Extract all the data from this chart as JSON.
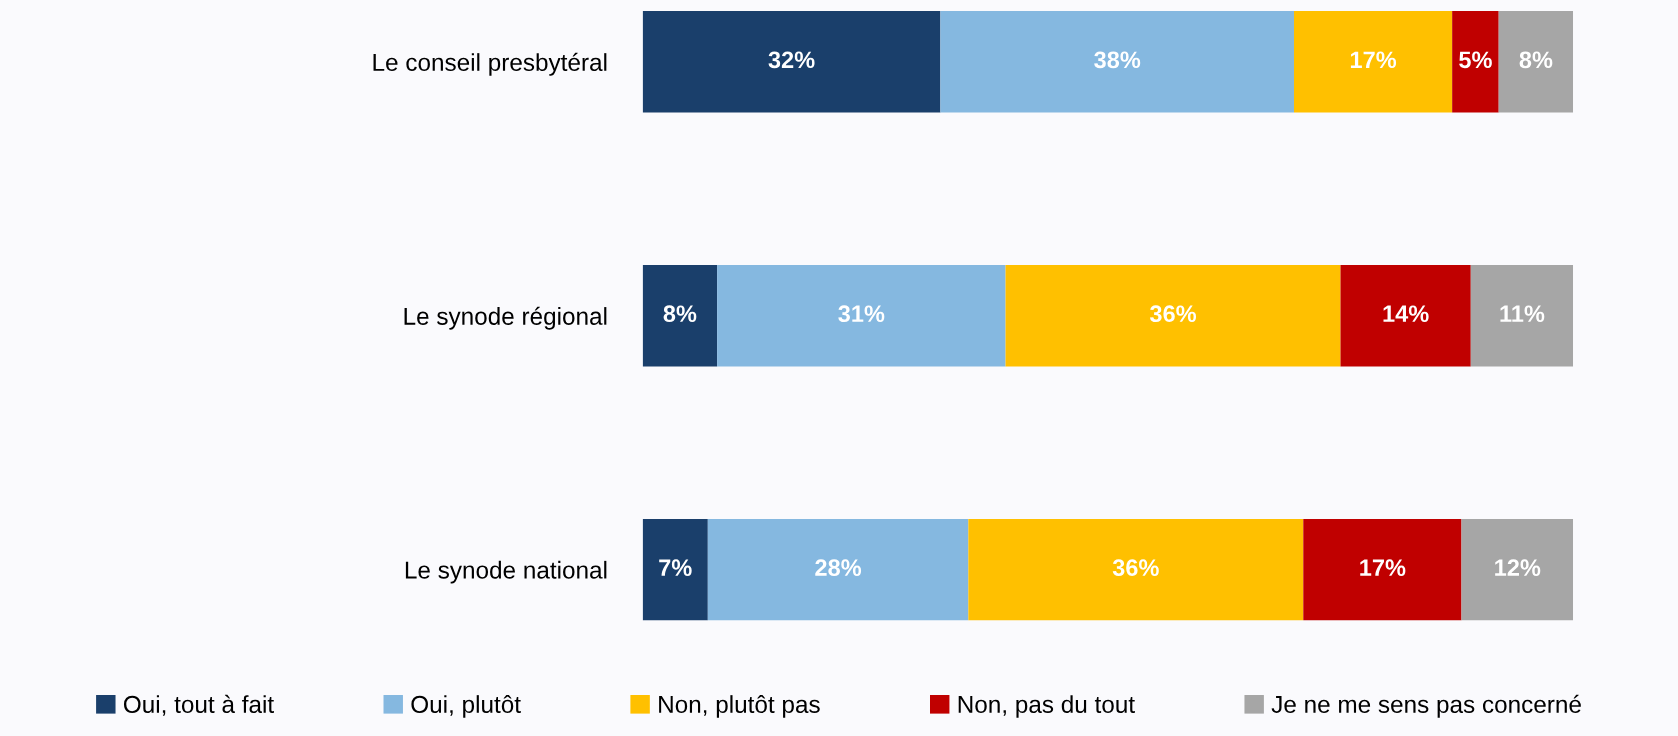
{
  "chart_data": {
    "type": "bar",
    "orientation": "horizontal",
    "stacked": true,
    "categories": [
      "Le conseil presbytéral",
      "Le synode régional",
      "Le synode national"
    ],
    "series": [
      {
        "name": "Oui, tout à fait",
        "color": "#1a3f6b",
        "values": [
          32,
          8,
          7
        ],
        "value_labels": [
          "32%",
          "8%",
          "7%"
        ]
      },
      {
        "name": "Oui, plutôt",
        "color": "#85b8e0",
        "values": [
          38,
          31,
          28
        ],
        "value_labels": [
          "38%",
          "31%",
          "28%"
        ]
      },
      {
        "name": "Non, plutôt pas",
        "color": "#ffc000",
        "values": [
          17,
          36,
          36
        ],
        "value_labels": [
          "17%",
          "36%",
          "36%"
        ]
      },
      {
        "name": "Non, pas du tout",
        "color": "#c00000",
        "values": [
          5,
          14,
          17
        ],
        "value_labels": [
          "5%",
          "14%",
          "17%"
        ]
      },
      {
        "name": "Je ne me sens pas concerné",
        "color": "#a6a6a6",
        "values": [
          8,
          11,
          12
        ],
        "value_labels": [
          "8%",
          "11%",
          "12%"
        ]
      }
    ],
    "legend": "bottom",
    "tick_labels": "y",
    "grid": false
  }
}
